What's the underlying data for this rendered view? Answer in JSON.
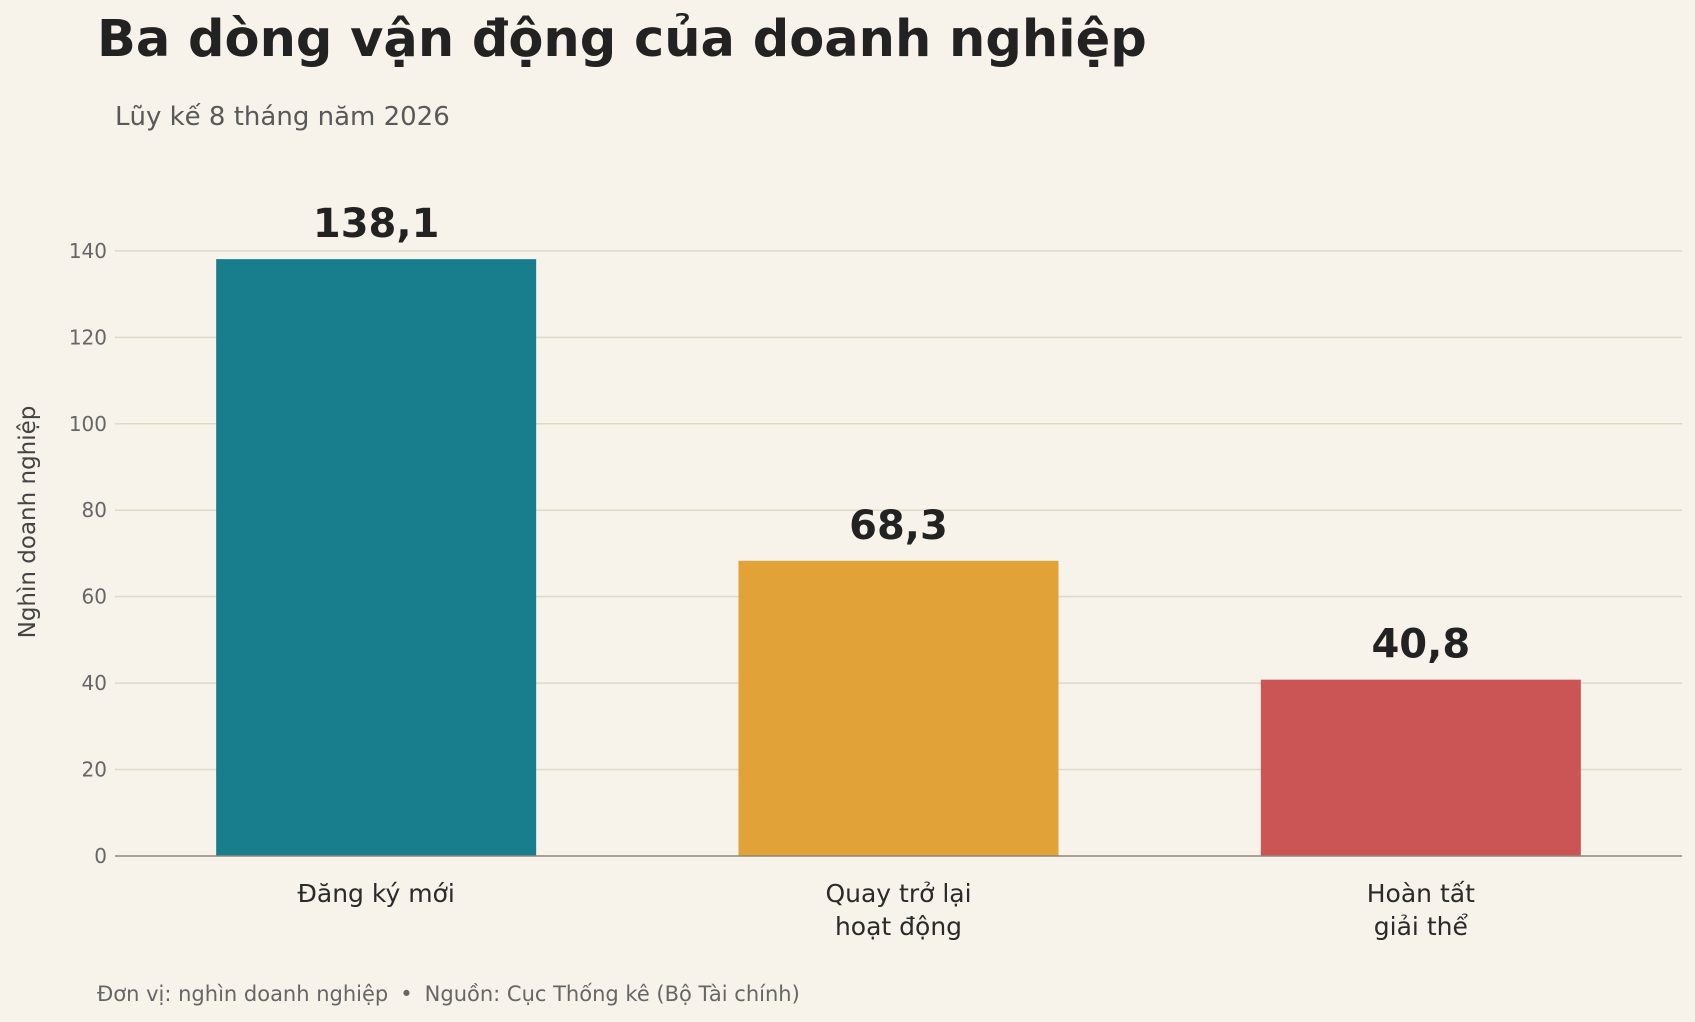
{
  "title": "Ba dòng vận động của doanh nghiệp",
  "subtitle": "Lũy kế 8 tháng năm 2026",
  "footer": {
    "unit": "Đơn vị: nghìn doanh nghiệp",
    "separator": "•",
    "source": "Nguồn: Cục Thống kê (Bộ Tài chính)"
  },
  "chart_data": {
    "type": "bar",
    "title": "Ba dòng vận động của doanh nghiệp",
    "subtitle": "Lũy kế 8 tháng năm 2026",
    "xlabel": "",
    "ylabel": "Nghìn doanh nghiệp",
    "categories": [
      [
        "Đăng ký mới"
      ],
      [
        "Quay trở lại",
        "hoạt động"
      ],
      [
        "Hoàn tất",
        "giải thể"
      ]
    ],
    "values": [
      138.1,
      68.3,
      40.8
    ],
    "value_labels": [
      "138,1",
      "68,3",
      "40,8"
    ],
    "colors": [
      "#187d8c",
      "#e1a238",
      "#cb5555"
    ],
    "ylim": [
      0,
      150
    ],
    "yticks": [
      0,
      20,
      40,
      60,
      80,
      100,
      120,
      140
    ],
    "grid": true
  }
}
